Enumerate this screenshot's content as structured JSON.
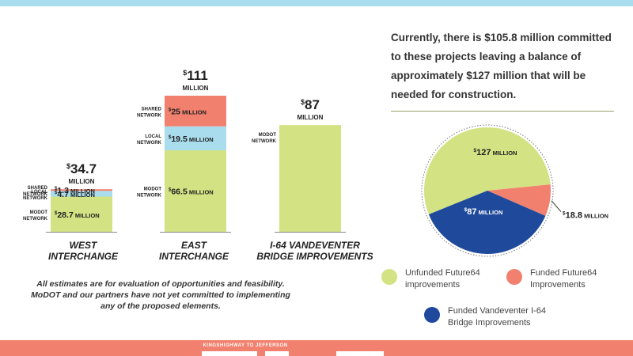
{
  "colors": {
    "modot": "#d3e283",
    "local": "#a9dcec",
    "shared": "#f2806e",
    "vandeventer": "#1f4a9c",
    "background_band": "#a9dcec",
    "footer_band": "#f2806e"
  },
  "headline": "Currently, there is $105.8 million committed to these projects leaving a balance of approximately $127 million that will be needed for construction.",
  "disclaimer": "All estimates are for evaluation of opportunities and feasibility. MoDOT and our partners have not yet committed to implementing any of the proposed elements.",
  "footer": {
    "tagline": "KINGSHIGHWAY TO JEFFERSON"
  },
  "chart_data": [
    {
      "type": "bar",
      "stacked": true,
      "categories": [
        "WEST INTERCHANGE",
        "EAST INTERCHANGE",
        "I-64 VANDEVENTER BRIDGE IMPROVEMENTS"
      ],
      "category_lines": [
        [
          "WEST",
          "INTERCHANGE"
        ],
        [
          "EAST",
          "INTERCHANGE"
        ],
        [
          "I-64 VANDEVENTER",
          "BRIDGE IMPROVEMENTS"
        ]
      ],
      "totals": [
        {
          "value": 34.7,
          "big": "34.7",
          "unit": "MILLION"
        },
        {
          "value": 111,
          "big": "111",
          "unit": "MILLION"
        },
        {
          "value": 87,
          "big": "87",
          "unit": "MILLION"
        }
      ],
      "series": [
        {
          "name": "MODOT NETWORK",
          "name_lines": [
            "MODOT",
            "NETWORK"
          ],
          "color_key": "modot",
          "values": [
            28.7,
            66.5,
            87
          ],
          "labels": [
            "28.7",
            "66.5",
            ""
          ]
        },
        {
          "name": "LOCAL NETWORK",
          "name_lines": [
            "LOCAL",
            "NETWORK"
          ],
          "color_key": "local",
          "values": [
            4.7,
            19.5,
            0
          ],
          "labels": [
            "4.7",
            "19.5",
            ""
          ]
        },
        {
          "name": "SHARED NETWORK",
          "name_lines": [
            "SHARED",
            "NETWORK"
          ],
          "color_key": "shared",
          "values": [
            1.3,
            25,
            0
          ],
          "labels": [
            "1.3",
            "25",
            ""
          ]
        }
      ],
      "value_prefix": "$",
      "value_suffix": "MILLION",
      "ylim": [
        0,
        111
      ]
    },
    {
      "type": "pie",
      "slices": [
        {
          "label_value": "127",
          "label_suffix": "MILLION",
          "value": 127,
          "color_key": "modot"
        },
        {
          "label_value": "18.8",
          "label_suffix": "MILLION",
          "value": 18.8,
          "color_key": "shared"
        },
        {
          "label_value": "87",
          "label_suffix": "MILLION",
          "value": 87,
          "color_key": "vandeventer"
        }
      ],
      "value_prefix": "$",
      "legend": [
        {
          "label": "Unfunded Future64 improvements",
          "lines": [
            "Unfunded Future64",
            "improvements"
          ],
          "color_key": "modot"
        },
        {
          "label": "Funded Future64 Improvements",
          "lines": [
            "Funded Future64",
            "Improvements"
          ],
          "color_key": "shared"
        },
        {
          "label": "Funded Vandeventer I-64 Bridge Improvements",
          "lines": [
            "Funded Vandeventer I-64",
            "Bridge Improvements"
          ],
          "color_key": "vandeventer"
        }
      ]
    }
  ]
}
